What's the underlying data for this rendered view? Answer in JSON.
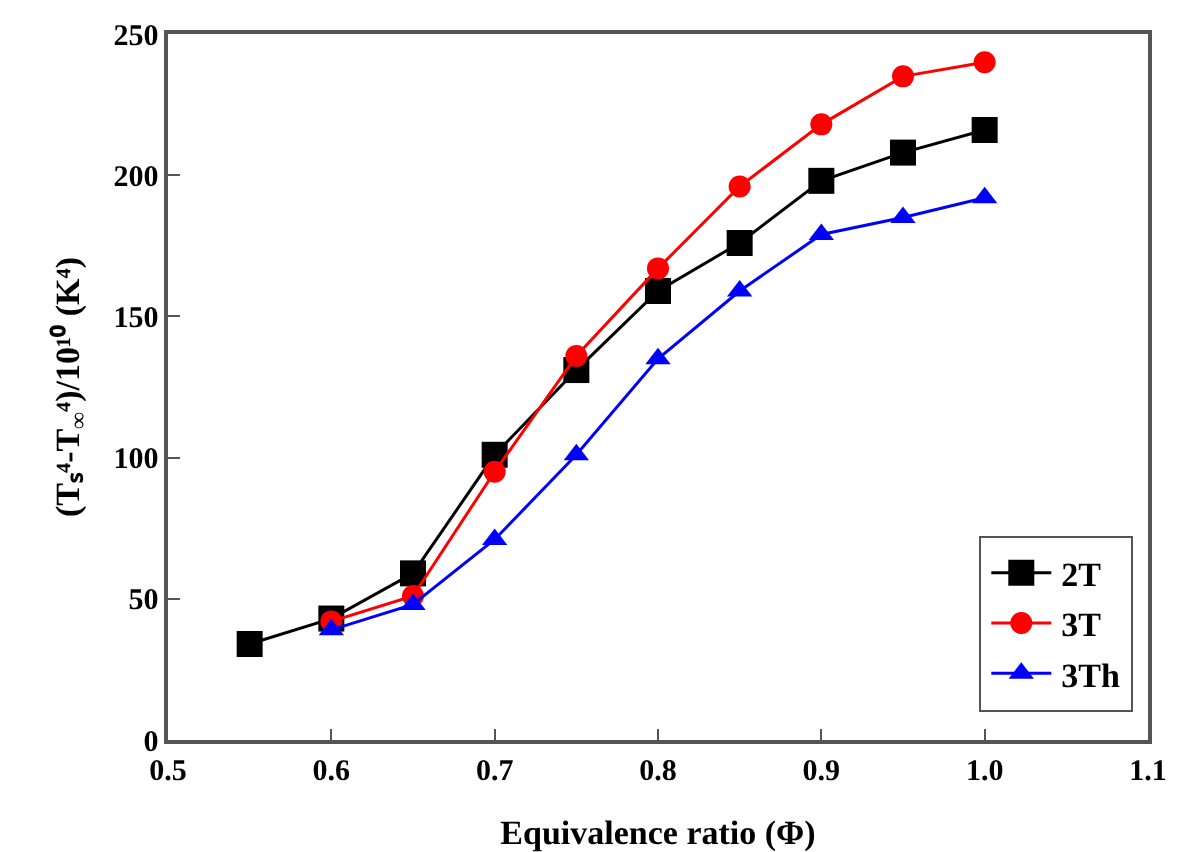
{
  "chart_data": {
    "type": "line",
    "xlabel": "Equivalence ratio (Φ)",
    "ylabel": "(Tₛ⁴-T$_{∞}$⁴)/10¹⁰ (K⁴)",
    "xlim": [
      0.5,
      1.1
    ],
    "xticks": [
      0.5,
      0.6,
      0.7,
      0.8,
      0.9,
      {
        "value": 1.0,
        "label": "1.0"
      },
      1.1
    ],
    "ylim": [
      0,
      250
    ],
    "yticks": [
      0,
      50,
      100,
      150,
      200,
      250
    ],
    "grid": false,
    "legend": "bottom right",
    "line_style": "solid",
    "series": [
      {
        "name": "2T",
        "color": "#000000",
        "marker": "square",
        "x": [
          0.55,
          0.6,
          0.65,
          0.7,
          0.75,
          0.8,
          0.85,
          0.9,
          0.95,
          1.0
        ],
        "values": [
          34,
          43,
          59,
          101,
          131,
          159,
          176,
          198,
          208,
          216
        ]
      },
      {
        "name": "3T",
        "color": "#ff0000",
        "marker": "circle",
        "x": [
          0.6,
          0.65,
          0.7,
          0.75,
          0.8,
          0.85,
          0.9,
          0.95,
          1.0
        ],
        "values": [
          42,
          51,
          95,
          136,
          167,
          196,
          218,
          235,
          240
        ]
      },
      {
        "name": "3Th",
        "color": "#0000ff",
        "marker": "triangle",
        "x": [
          0.6,
          0.65,
          0.7,
          0.75,
          0.8,
          0.85,
          0.9,
          0.95,
          1.0
        ],
        "values": [
          39,
          48,
          71,
          101,
          135,
          159,
          179,
          185,
          192
        ]
      }
    ]
  }
}
